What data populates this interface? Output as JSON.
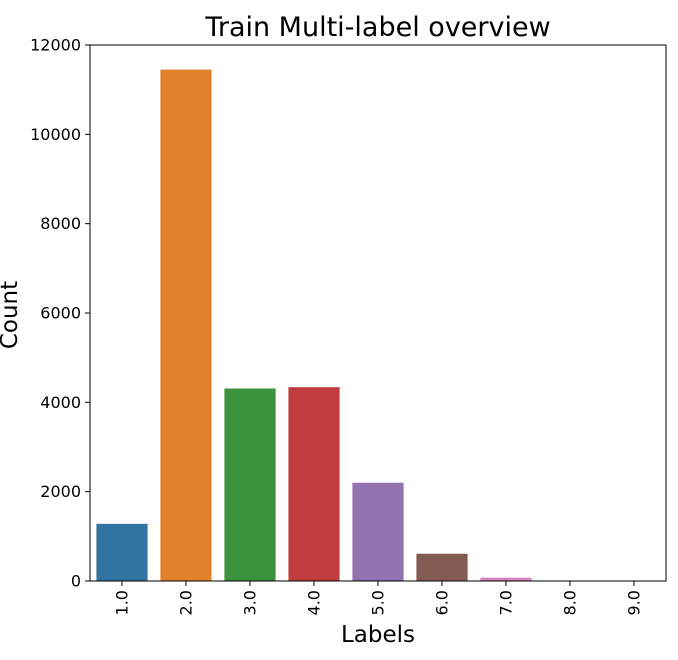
{
  "chart_data": {
    "type": "bar",
    "title": "Train Multi-label overview",
    "xlabel": "Labels",
    "ylabel": "Count",
    "categories": [
      "1.0",
      "2.0",
      "3.0",
      "4.0",
      "5.0",
      "6.0",
      "7.0",
      "8.0",
      "9.0"
    ],
    "values": [
      1280,
      11450,
      4310,
      4340,
      2200,
      610,
      75,
      8,
      3
    ],
    "colors": [
      "#3274a1",
      "#e1812c",
      "#3a923a",
      "#c03d3e",
      "#9372b2",
      "#845b53",
      "#d684bd",
      "#7f7f7f",
      "#a9aa35"
    ],
    "ylim": [
      0,
      12000
    ],
    "yticks": [
      "0",
      "2000",
      "4000",
      "6000",
      "8000",
      "10000",
      "12000"
    ],
    "grid": false,
    "legend": "none"
  }
}
